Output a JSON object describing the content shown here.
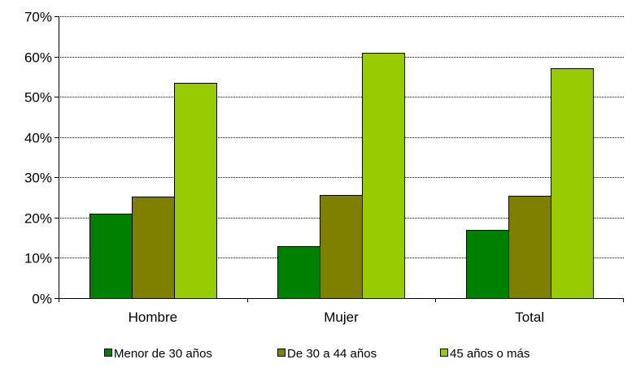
{
  "chart_data": {
    "type": "bar",
    "categories": [
      "Hombre",
      "Mujer",
      "Total"
    ],
    "series": [
      {
        "name": "Menor de 30 años",
        "color": "#008000",
        "values": [
          21,
          13,
          17
        ]
      },
      {
        "name": "De 30 a 44 años",
        "color": "#808000",
        "values": [
          25.3,
          25.7,
          25.5
        ]
      },
      {
        "name": "45 años o más",
        "color": "#99cc00",
        "values": [
          53.5,
          61,
          57
        ]
      }
    ],
    "ylim": [
      0,
      70
    ],
    "yticks": [
      0,
      10,
      20,
      30,
      40,
      50,
      60,
      70
    ],
    "ytick_labels": [
      "0%",
      "10%",
      "20%",
      "30%",
      "40%",
      "50%",
      "60%",
      "70%"
    ],
    "grid": true,
    "legend_position": "bottom"
  }
}
